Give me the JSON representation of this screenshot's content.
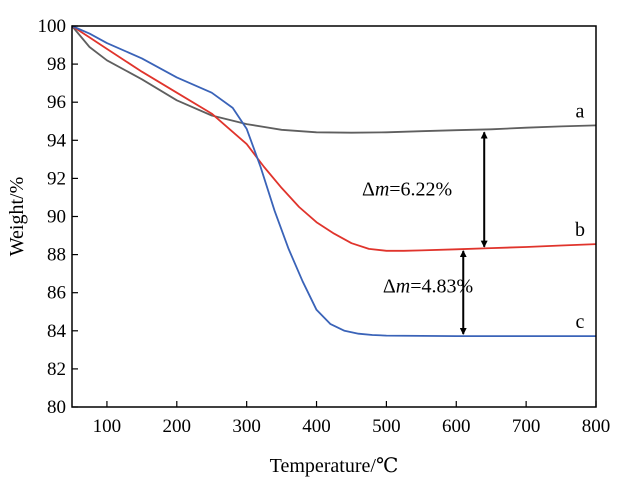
{
  "chart_data": {
    "type": "line",
    "title": "",
    "xlabel": "Temperature/℃",
    "ylabel": "Weight/%",
    "xlim": [
      50,
      800
    ],
    "ylim": [
      80,
      100
    ],
    "x_ticks": [
      100,
      200,
      300,
      400,
      500,
      600,
      700,
      800
    ],
    "y_ticks": [
      80,
      82,
      84,
      86,
      88,
      90,
      92,
      94,
      96,
      98,
      100
    ],
    "grid": false,
    "legend": "none",
    "series": [
      {
        "name": "a",
        "color": "#5f5f5f",
        "x": [
          50,
          75,
          100,
          150,
          200,
          250,
          300,
          350,
          400,
          450,
          500,
          550,
          600,
          650,
          700,
          750,
          800
        ],
        "y": [
          100,
          98.9,
          98.2,
          97.2,
          96.1,
          95.3,
          94.85,
          94.55,
          94.42,
          94.4,
          94.42,
          94.48,
          94.53,
          94.58,
          94.66,
          94.73,
          94.78
        ]
      },
      {
        "name": "b",
        "color": "#e0342c",
        "x": [
          50,
          75,
          100,
          150,
          200,
          250,
          300,
          325,
          350,
          375,
          400,
          425,
          450,
          475,
          500,
          525,
          550,
          600,
          650,
          700,
          750,
          800
        ],
        "y": [
          100,
          99.4,
          98.8,
          97.6,
          96.5,
          95.4,
          93.8,
          92.6,
          91.5,
          90.5,
          89.7,
          89.1,
          88.6,
          88.3,
          88.2,
          88.2,
          88.22,
          88.28,
          88.34,
          88.4,
          88.48,
          88.55
        ]
      },
      {
        "name": "c",
        "color": "#3a63b8",
        "x": [
          50,
          75,
          100,
          150,
          200,
          250,
          280,
          300,
          320,
          340,
          360,
          380,
          400,
          420,
          440,
          460,
          480,
          500,
          550,
          600,
          650,
          700,
          750,
          800
        ],
        "y": [
          100,
          99.6,
          99.1,
          98.3,
          97.3,
          96.5,
          95.7,
          94.6,
          92.6,
          90.3,
          88.3,
          86.6,
          85.1,
          84.35,
          84.0,
          83.85,
          83.78,
          83.75,
          83.73,
          83.72,
          83.72,
          83.72,
          83.72,
          83.72
        ]
      }
    ],
    "annotations": [
      {
        "prefix": "Δ",
        "symbol": "m",
        "value": "=6.22%",
        "x": 465,
        "y": 91.1,
        "arrow_x": 640,
        "arrow_from": 94.53,
        "arrow_to": 88.3
      },
      {
        "prefix": "Δ",
        "symbol": "m",
        "value": "=4.83%",
        "x": 495,
        "y": 86.0,
        "arrow_x": 610,
        "arrow_from": 88.3,
        "arrow_to": 83.72
      }
    ]
  }
}
